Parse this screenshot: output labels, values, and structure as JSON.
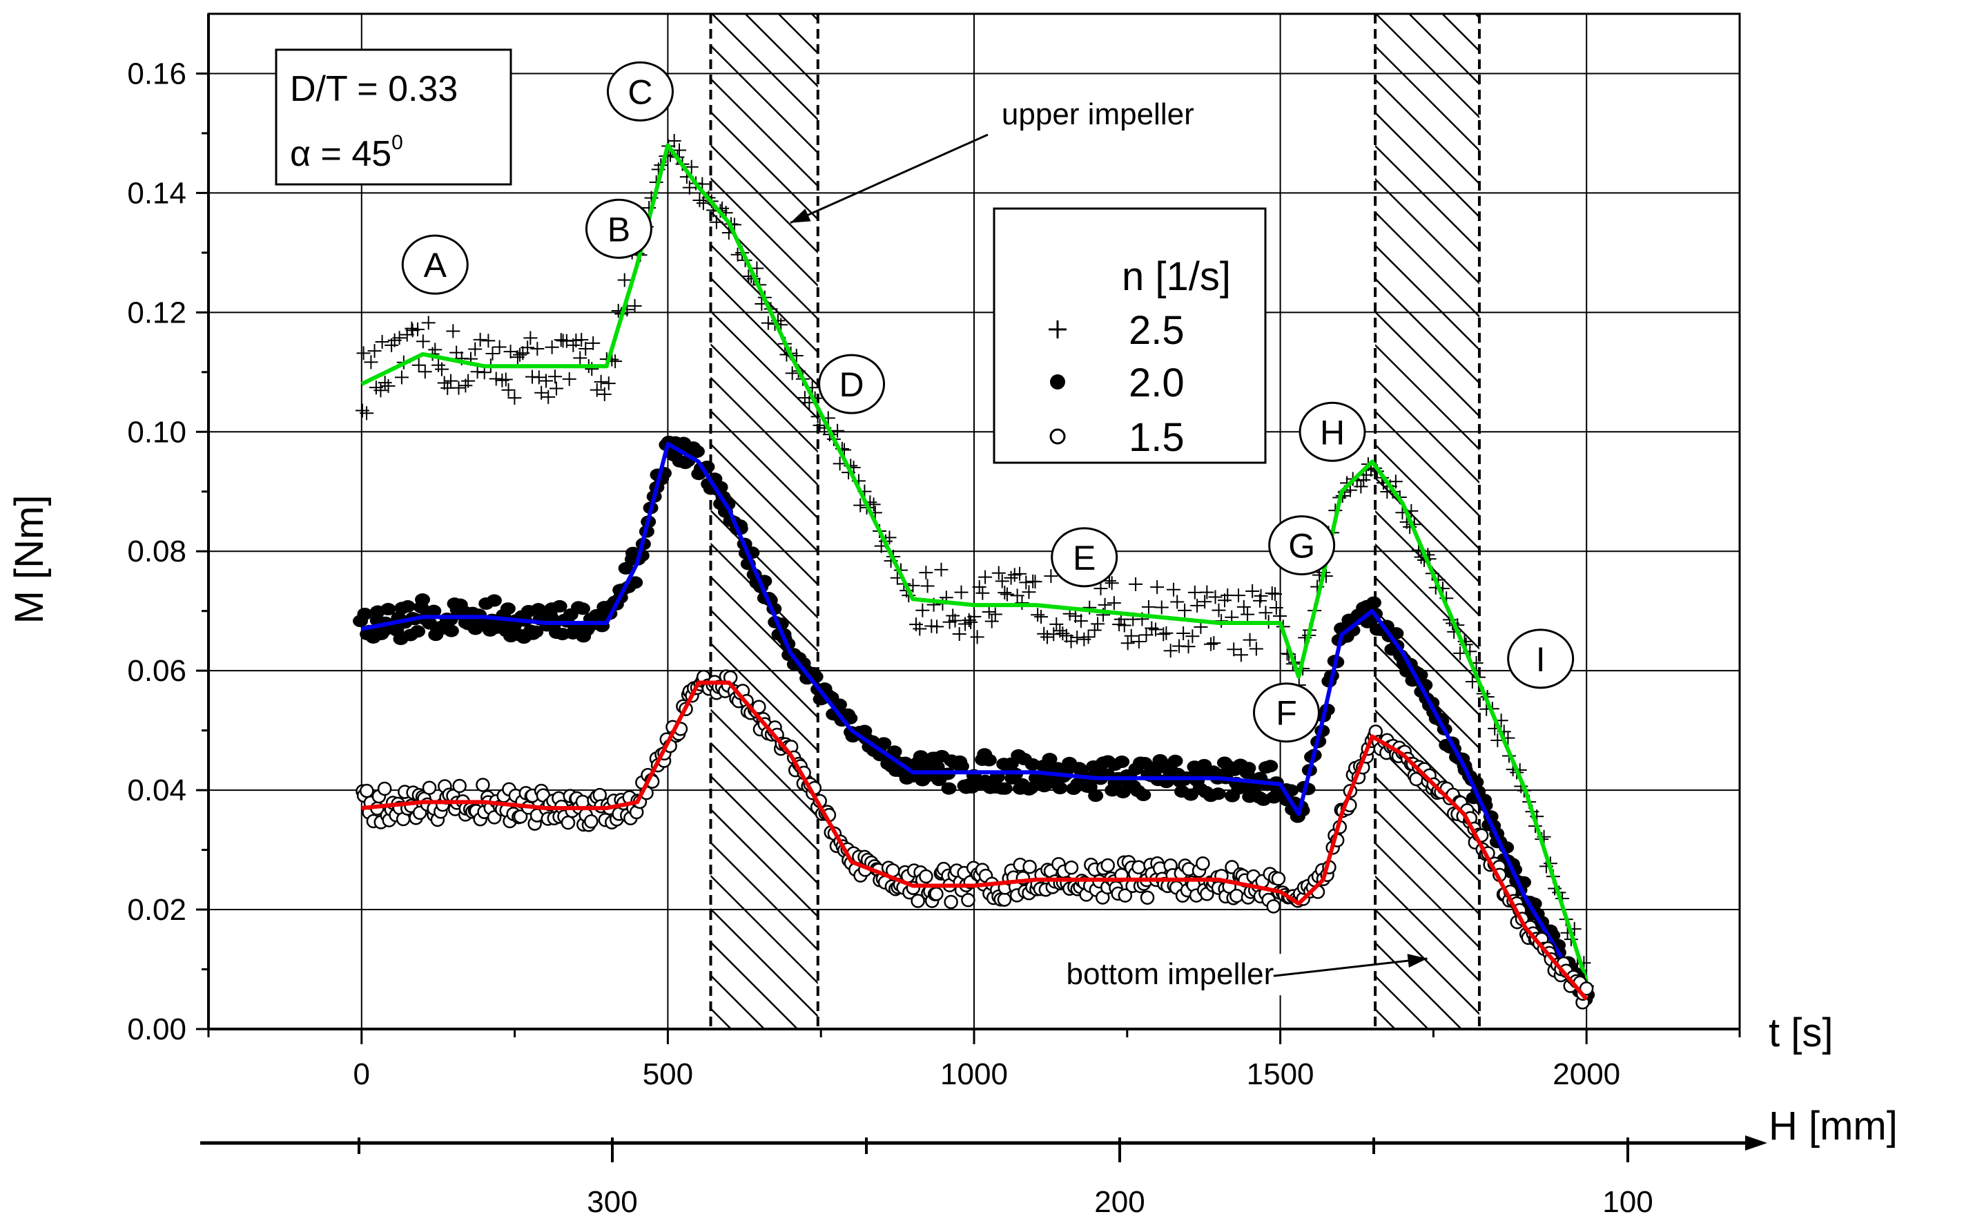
{
  "chart_data": {
    "type": "scatter",
    "title": "",
    "xlabel": "t [s]",
    "ylabel": "M [Nm]",
    "x_ticks": [
      "0",
      "500",
      "1000",
      "1500",
      "2000"
    ],
    "y_ticks": [
      "0.00",
      "0.02",
      "0.04",
      "0.06",
      "0.08",
      "0.10",
      "0.12",
      "0.14",
      "0.16"
    ],
    "xlim": [
      -250,
      2250
    ],
    "ylim": [
      0,
      0.17
    ],
    "secondary_x_axis": {
      "label": "H [mm]",
      "ticks": [
        "300",
        "200",
        "100"
      ]
    },
    "grid": true,
    "info_box": {
      "line1": "D/T = 0.33",
      "alpha_prefix": "α = 45",
      "alpha_sup": "0"
    },
    "legend": {
      "title": "n [1/s]",
      "location": "upper-right",
      "entries": [
        "2.5",
        "2.0",
        "1.5"
      ]
    },
    "series": [
      {
        "name": "2.5",
        "marker": "plus",
        "fit_color": "#00dd00",
        "x": [
          0,
          100,
          200,
          300,
          400,
          450,
          500,
          550,
          600,
          700,
          800,
          900,
          1000,
          1100,
          1200,
          1300,
          1400,
          1500,
          1530,
          1570,
          1600,
          1650,
          1700,
          1800,
          1900,
          2000
        ],
        "values": [
          0.108,
          0.113,
          0.111,
          0.111,
          0.111,
          0.128,
          0.148,
          0.141,
          0.135,
          0.113,
          0.093,
          0.072,
          0.071,
          0.071,
          0.07,
          0.069,
          0.068,
          0.068,
          0.059,
          0.076,
          0.09,
          0.095,
          0.088,
          0.064,
          0.04,
          0.008
        ]
      },
      {
        "name": "2.0",
        "marker": "filled-circle",
        "fit_color": "#0000ee",
        "x": [
          0,
          100,
          200,
          300,
          400,
          450,
          500,
          550,
          600,
          700,
          800,
          900,
          1000,
          1100,
          1200,
          1300,
          1400,
          1500,
          1530,
          1570,
          1600,
          1650,
          1700,
          1800,
          1900,
          2000
        ],
        "values": [
          0.067,
          0.069,
          0.069,
          0.068,
          0.068,
          0.078,
          0.098,
          0.095,
          0.087,
          0.063,
          0.05,
          0.043,
          0.043,
          0.043,
          0.042,
          0.042,
          0.042,
          0.041,
          0.036,
          0.052,
          0.066,
          0.07,
          0.063,
          0.044,
          0.022,
          0.005
        ]
      },
      {
        "name": "1.5",
        "marker": "open-circle",
        "fit_color": "#ee0000",
        "x": [
          0,
          100,
          200,
          300,
          400,
          450,
          500,
          550,
          600,
          700,
          800,
          900,
          1000,
          1100,
          1200,
          1300,
          1400,
          1500,
          1530,
          1570,
          1600,
          1650,
          1700,
          1800,
          1900,
          2000
        ],
        "values": [
          0.037,
          0.038,
          0.038,
          0.037,
          0.037,
          0.038,
          0.048,
          0.058,
          0.058,
          0.046,
          0.028,
          0.024,
          0.024,
          0.025,
          0.025,
          0.025,
          0.025,
          0.023,
          0.021,
          0.025,
          0.036,
          0.049,
          0.046,
          0.036,
          0.017,
          0.005
        ]
      }
    ],
    "shaded_regions": [
      {
        "x_start": 570,
        "x_end": 745
      },
      {
        "x_start": 1655,
        "x_end": 1825
      }
    ],
    "point_labels": [
      {
        "label": "A",
        "x": 120,
        "y": 0.128
      },
      {
        "label": "B",
        "x": 420,
        "y": 0.134
      },
      {
        "label": "C",
        "x": 455,
        "y": 0.157
      },
      {
        "label": "D",
        "x": 800,
        "y": 0.108
      },
      {
        "label": "E",
        "x": 1180,
        "y": 0.079
      },
      {
        "label": "F",
        "x": 1510,
        "y": 0.053
      },
      {
        "label": "G",
        "x": 1535,
        "y": 0.081
      },
      {
        "label": "H",
        "x": 1585,
        "y": 0.1
      },
      {
        "label": "I",
        "x": 1925,
        "y": 0.062
      }
    ],
    "annotations": [
      {
        "text": "upper impeller",
        "text_x": 1045,
        "text_y": 0.1515,
        "arrow_x": 700,
        "arrow_y": 0.135
      },
      {
        "text": "bottom impeller",
        "text_x": 1320,
        "text_y": 0.0075,
        "arrow_x": 1740,
        "arrow_y": 0.0118
      }
    ]
  }
}
